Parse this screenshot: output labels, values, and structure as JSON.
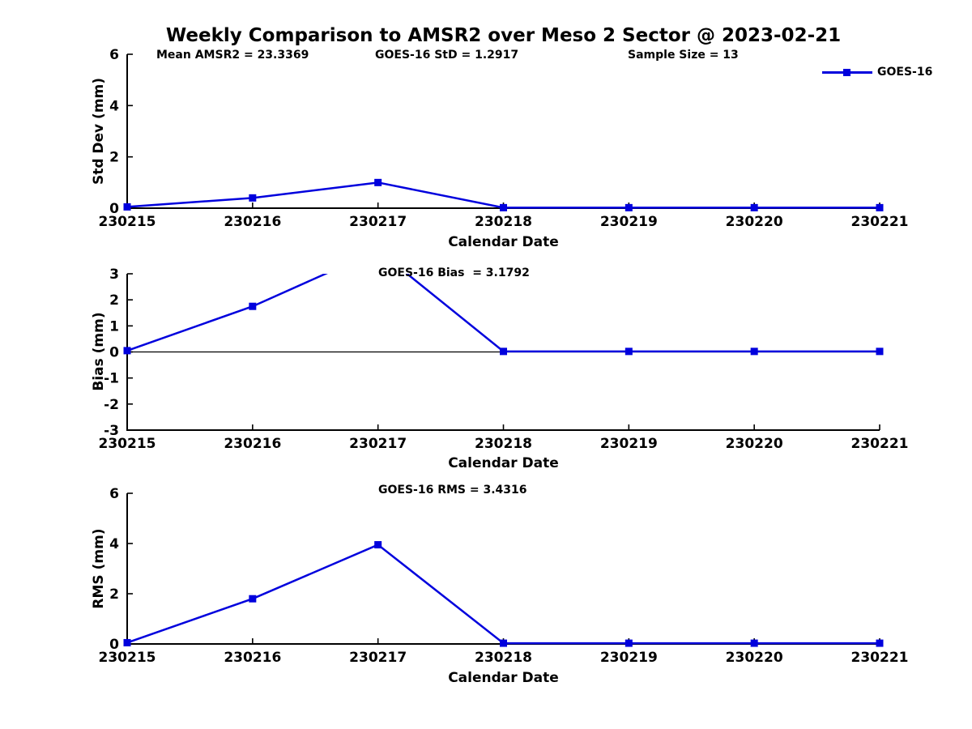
{
  "title": "Weekly Comparison to AMSR2 over Meso 2 Sector @ 2023-02-21",
  "stats": {
    "mean_amsr2": 23.3369,
    "goes16_std": 1.2917,
    "sample_size": 13,
    "goes16_bias": 3.1792,
    "goes16_rms": 3.4316
  },
  "chart_data": {
    "type": "line",
    "x_categories": [
      "230215",
      "230216",
      "230217",
      "230218",
      "230219",
      "230220",
      "230221"
    ],
    "xlabel": "Calendar Date",
    "series": [
      {
        "name": "GOES-16",
        "color": "#0000DD",
        "marker": "square"
      }
    ],
    "legend_position": "top-right",
    "grid": false,
    "subplots": [
      {
        "id": "std-dev",
        "ylabel": "Std Dev (mm)",
        "ylim": [
          0,
          6
        ],
        "yticks": [
          0,
          2,
          4,
          6
        ],
        "zero_line": false,
        "values": [
          0.05,
          0.4,
          1.0,
          0.02,
          0.02,
          0.02,
          0.02
        ],
        "annotations": [
          {
            "text": "Mean AMSR2 = 23.3369"
          },
          {
            "text": "GOES-16 StD = 1.2917"
          },
          {
            "text": "Sample Size = 13"
          }
        ]
      },
      {
        "id": "bias",
        "ylabel": "Bias (mm)",
        "ylim": [
          -3,
          3
        ],
        "yticks": [
          -3,
          -2,
          -1,
          0,
          1,
          2,
          3
        ],
        "zero_line": true,
        "values": [
          0.05,
          1.75,
          3.9,
          0.02,
          0.02,
          0.02,
          0.02
        ],
        "annotations": [
          {
            "text": "GOES-16 Bias  = 3.1792"
          }
        ]
      },
      {
        "id": "rms",
        "ylabel": "RMS (mm)",
        "ylim": [
          0,
          6
        ],
        "yticks": [
          0,
          2,
          4,
          6
        ],
        "zero_line": false,
        "values": [
          0.05,
          1.8,
          3.95,
          0.03,
          0.03,
          0.03,
          0.03
        ],
        "annotations": [
          {
            "text": "GOES-16 RMS = 3.4316"
          }
        ]
      }
    ]
  }
}
